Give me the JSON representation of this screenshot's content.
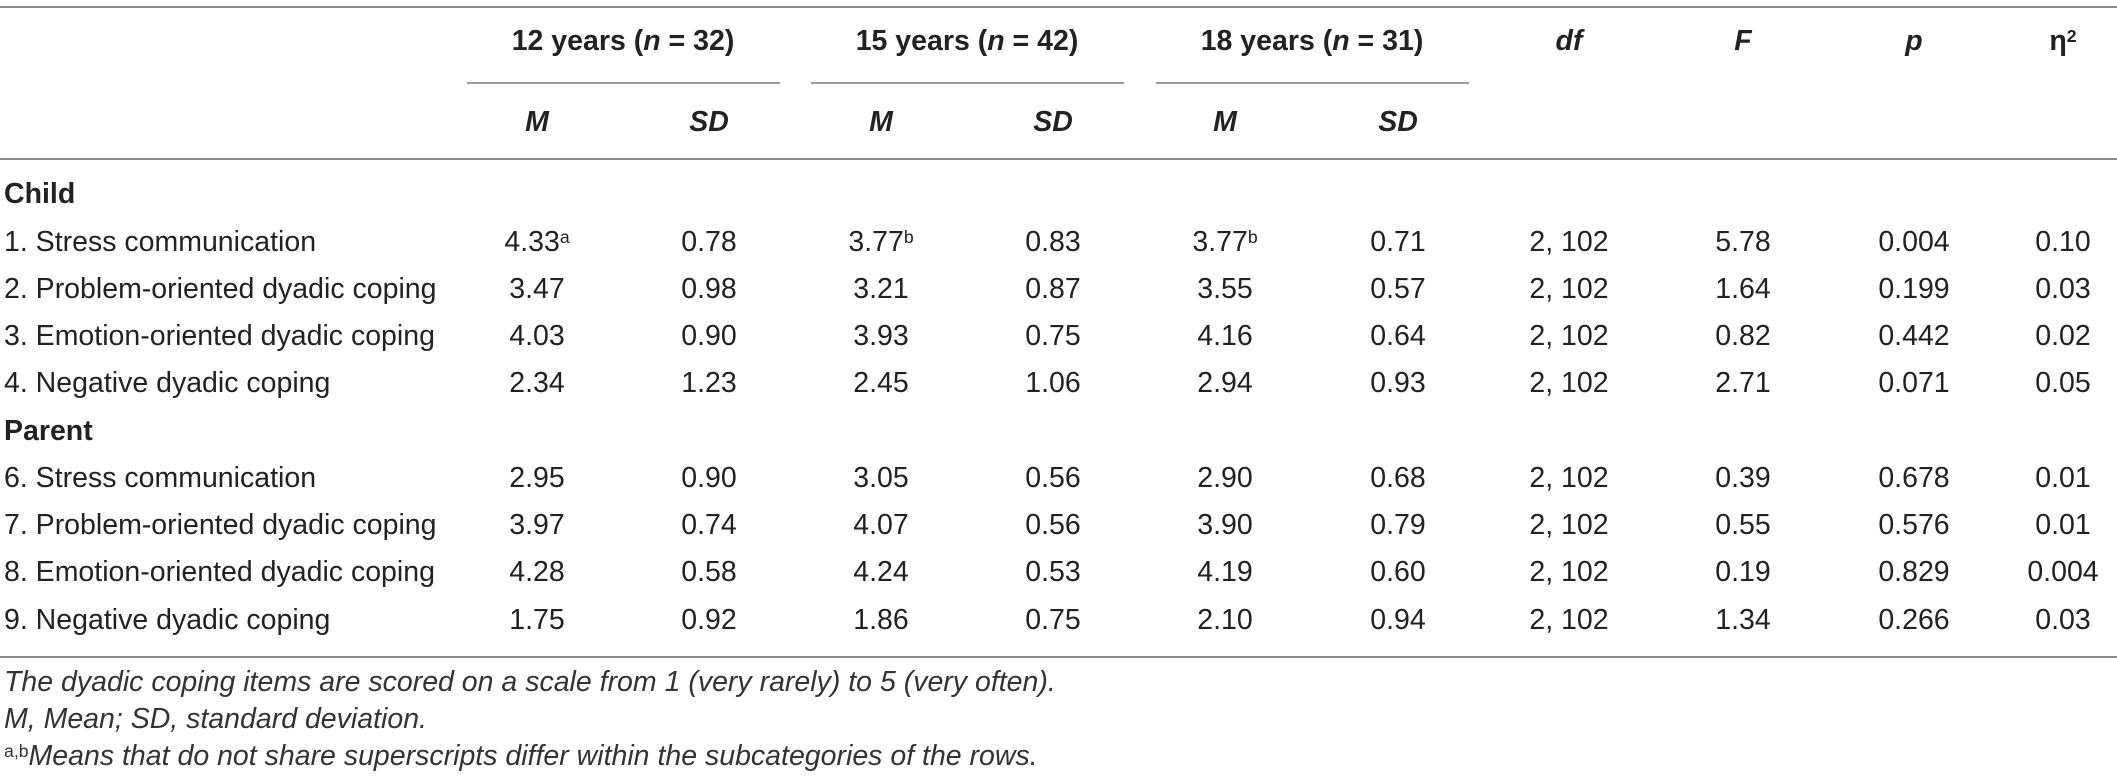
{
  "header": {
    "groups": [
      {
        "prefix": "12 years (",
        "n_label": "n",
        "suffix": " = 32)"
      },
      {
        "prefix": "15 years (",
        "n_label": "n",
        "suffix": " = 42)"
      },
      {
        "prefix": "18 years (",
        "n_label": "n",
        "suffix": " = 31)"
      }
    ],
    "m_label": "M",
    "sd_label": "SD",
    "df_label": "df",
    "f_label": "F",
    "p_label": "p",
    "eta_base": "η",
    "eta_sup": "2"
  },
  "sections": [
    {
      "title": "Child",
      "rows": [
        {
          "label": "1. Stress communication",
          "m12": "4.33",
          "m12_sup": "a",
          "sd12": "0.78",
          "m15": "3.77",
          "m15_sup": "b",
          "sd15": "0.83",
          "m18": "3.77",
          "m18_sup": "b",
          "sd18": "0.71",
          "df": "2, 102",
          "f": "5.78",
          "p": "0.004",
          "eta": "0.10"
        },
        {
          "label": "2. Problem-oriented dyadic coping",
          "m12": "3.47",
          "m12_sup": "",
          "sd12": "0.98",
          "m15": "3.21",
          "m15_sup": "",
          "sd15": "0.87",
          "m18": "3.55",
          "m18_sup": "",
          "sd18": "0.57",
          "df": "2, 102",
          "f": "1.64",
          "p": "0.199",
          "eta": "0.03"
        },
        {
          "label": "3. Emotion-oriented dyadic coping",
          "m12": "4.03",
          "m12_sup": "",
          "sd12": "0.90",
          "m15": "3.93",
          "m15_sup": "",
          "sd15": "0.75",
          "m18": "4.16",
          "m18_sup": "",
          "sd18": "0.64",
          "df": "2, 102",
          "f": "0.82",
          "p": "0.442",
          "eta": "0.02"
        },
        {
          "label": "4. Negative dyadic coping",
          "m12": "2.34",
          "m12_sup": "",
          "sd12": "1.23",
          "m15": "2.45",
          "m15_sup": "",
          "sd15": "1.06",
          "m18": "2.94",
          "m18_sup": "",
          "sd18": "0.93",
          "df": "2, 102",
          "f": "2.71",
          "p": "0.071",
          "eta": "0.05"
        }
      ]
    },
    {
      "title": "Parent",
      "rows": [
        {
          "label": "6. Stress communication",
          "m12": "2.95",
          "m12_sup": "",
          "sd12": "0.90",
          "m15": "3.05",
          "m15_sup": "",
          "sd15": "0.56",
          "m18": "2.90",
          "m18_sup": "",
          "sd18": "0.68",
          "df": "2, 102",
          "f": "0.39",
          "p": "0.678",
          "eta": "0.01"
        },
        {
          "label": "7. Problem-oriented dyadic coping",
          "m12": "3.97",
          "m12_sup": "",
          "sd12": "0.74",
          "m15": "4.07",
          "m15_sup": "",
          "sd15": "0.56",
          "m18": "3.90",
          "m18_sup": "",
          "sd18": "0.79",
          "df": "2, 102",
          "f": "0.55",
          "p": "0.576",
          "eta": "0.01"
        },
        {
          "label": "8. Emotion-oriented dyadic coping",
          "m12": "4.28",
          "m12_sup": "",
          "sd12": "0.58",
          "m15": "4.24",
          "m15_sup": "",
          "sd15": "0.53",
          "m18": "4.19",
          "m18_sup": "",
          "sd18": "0.60",
          "df": "2, 102",
          "f": "0.19",
          "p": "0.829",
          "eta": "0.004"
        },
        {
          "label": "9. Negative dyadic coping",
          "m12": "1.75",
          "m12_sup": "",
          "sd12": "0.92",
          "m15": "1.86",
          "m15_sup": "",
          "sd15": "0.75",
          "m18": "2.10",
          "m18_sup": "",
          "sd18": "0.94",
          "df": "2, 102",
          "f": "1.34",
          "p": "0.266",
          "eta": "0.03"
        }
      ]
    }
  ],
  "footnotes": {
    "scale_note": "The dyadic coping items are scored on a scale from 1 (very rarely) to 5 (very often).",
    "abbrev_note": "M, Mean; SD, standard deviation.",
    "superscript_marks": "a,b",
    "superscript_note": "Means that do not share superscripts differ within the subcategories of the rows."
  }
}
